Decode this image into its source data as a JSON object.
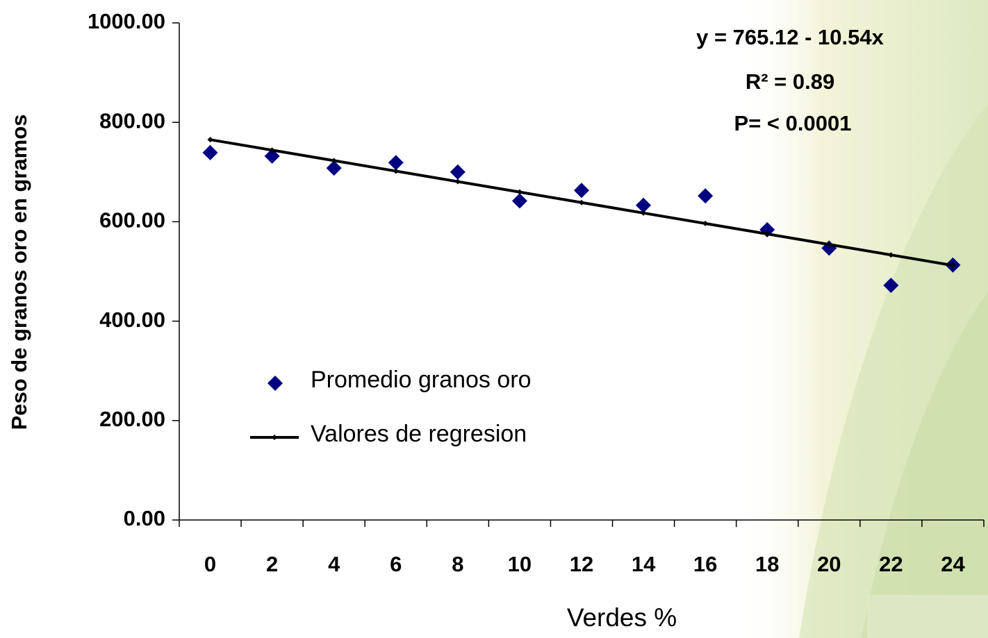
{
  "chart_data": {
    "type": "line",
    "x_label": "Verdes %",
    "y_label": "Peso de granos oro en gramos",
    "categories": [
      "0",
      "2",
      "4",
      "6",
      "8",
      "10",
      "12",
      "14",
      "16",
      "18",
      "20",
      "22",
      "24"
    ],
    "series": [
      {
        "name": "Promedio granos oro",
        "color": "#000080",
        "style": "markers",
        "values": [
          739,
          732,
          708,
          719,
          700,
          642,
          663,
          633,
          652,
          584,
          547,
          472,
          513
        ]
      },
      {
        "name": "Valores de regresion",
        "color": "#000000",
        "style": "line",
        "values": [
          765.12,
          744.04,
          722.96,
          701.88,
          680.8,
          659.72,
          638.64,
          617.56,
          596.48,
          575.4,
          554.32,
          533.24,
          512.16
        ]
      }
    ],
    "annotations": [
      "y = 765.12 - 10.54x",
      "R² = 0.89",
      "P= < 0.0001"
    ],
    "ylim": [
      0,
      1000
    ],
    "yticks": [
      {
        "value": 0,
        "label": "0.00"
      },
      {
        "value": 200,
        "label": "200.00"
      },
      {
        "value": 400,
        "label": "400.00"
      },
      {
        "value": 600,
        "label": "600.00"
      },
      {
        "value": 800,
        "label": "800.00"
      },
      {
        "value": 1000,
        "label": "1000.00"
      }
    ],
    "grid": false,
    "legend": "lower-left"
  }
}
